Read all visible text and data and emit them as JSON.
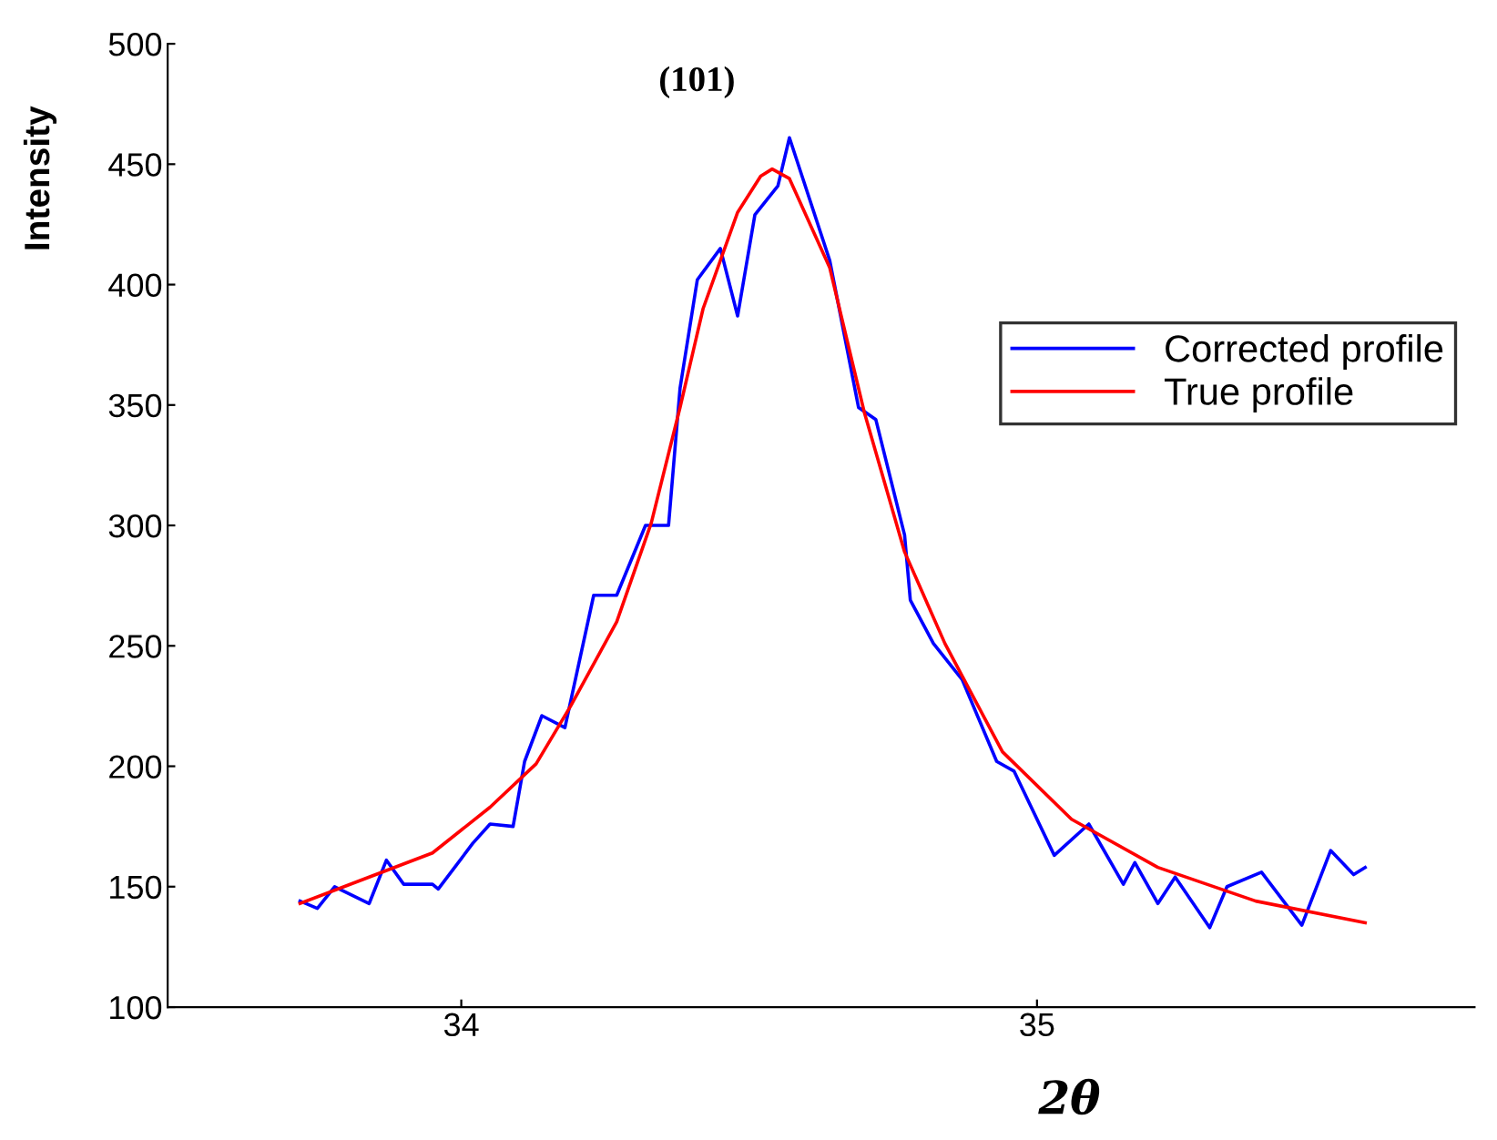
{
  "chart_data": {
    "type": "line",
    "xlabel": "2θ",
    "ylabel": "Intensity",
    "annotations": [
      "(101)"
    ],
    "xlim": [
      33.49,
      35.76
    ],
    "xticks": [
      34,
      35
    ],
    "ylim": [
      100,
      500
    ],
    "yticks": [
      100,
      150,
      200,
      250,
      300,
      350,
      400,
      450,
      500
    ],
    "grid": false,
    "legend": "right",
    "line_style": "solid",
    "marker": "none",
    "series": [
      {
        "name": "Corrected profile",
        "color": "#0000ff",
        "x": [
          33.72,
          33.75,
          33.78,
          33.84,
          33.87,
          33.9,
          33.95,
          33.96,
          34.02,
          34.05,
          34.09,
          34.11,
          34.14,
          34.18,
          34.23,
          34.27,
          34.32,
          34.36,
          34.38,
          34.41,
          34.45,
          34.48,
          34.51,
          34.55,
          34.57,
          34.64,
          34.69,
          34.72,
          34.77,
          34.78,
          34.82,
          34.87,
          34.93,
          34.96,
          35.03,
          35.09,
          35.15,
          35.17,
          35.21,
          35.24,
          35.3,
          35.33,
          35.39,
          35.46,
          35.51,
          35.55,
          35.57
        ],
        "values": [
          144,
          141,
          150,
          143,
          161,
          151,
          151,
          149,
          168,
          176,
          175,
          202,
          221,
          216,
          271,
          271,
          300,
          300,
          357,
          402,
          415,
          387,
          429,
          441,
          461,
          410,
          349,
          344,
          296,
          269,
          251,
          236,
          202,
          198,
          163,
          176,
          151,
          160,
          143,
          154,
          133,
          150,
          156,
          134,
          165,
          155,
          158
        ]
      },
      {
        "name": "True profile",
        "color": "#ff0000",
        "x": [
          33.72,
          33.84,
          33.95,
          34.05,
          34.13,
          34.19,
          34.27,
          34.33,
          34.38,
          34.42,
          34.48,
          34.52,
          34.54,
          34.57,
          34.64,
          34.7,
          34.77,
          34.84,
          34.94,
          35.06,
          35.21,
          35.38,
          35.57
        ],
        "values": [
          143,
          154,
          164,
          183,
          201,
          225,
          260,
          301,
          349,
          390,
          430,
          445,
          448,
          444,
          407,
          347,
          289,
          251,
          206,
          178,
          158,
          144,
          135
        ]
      }
    ]
  }
}
